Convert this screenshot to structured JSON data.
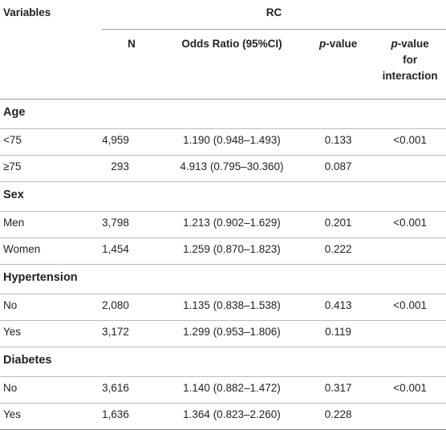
{
  "header": {
    "variables_label": "Variables",
    "group_label": "RC",
    "col_n": "N",
    "col_or": "Odds Ratio (95%CI)",
    "col_p_italic": "p",
    "col_p_rest": "-value",
    "col_pint_italic": "p",
    "col_pint_line1_rest": "-value",
    "col_pint_line2": "for",
    "col_pint_line3": "interaction"
  },
  "sections": [
    {
      "title": "Age",
      "rows": [
        {
          "label": "<75",
          "n": "4,959",
          "or": "1.190 (0.948–1.493)",
          "p": "0.133",
          "pint": "<0.001"
        },
        {
          "label": "≥75",
          "n": "293",
          "or": "4.913 (0.795–30.360)",
          "p": "0.087",
          "pint": ""
        }
      ]
    },
    {
      "title": "Sex",
      "rows": [
        {
          "label": "Men",
          "n": "3,798",
          "or": "1.213 (0.902–1.629)",
          "p": "0.201",
          "pint": "<0.001"
        },
        {
          "label": "Women",
          "n": "1,454",
          "or": "1.259 (0.870–1.823)",
          "p": "0.222",
          "pint": ""
        }
      ]
    },
    {
      "title": "Hypertension",
      "rows": [
        {
          "label": "No",
          "n": "2,080",
          "or": "1.135 (0.838–1.538)",
          "p": "0.413",
          "pint": "<0.001"
        },
        {
          "label": "Yes",
          "n": "3,172",
          "or": "1.299 (0.953–1.806)",
          "p": "0.119",
          "pint": ""
        }
      ]
    },
    {
      "title": "Diabetes",
      "rows": [
        {
          "label": "No",
          "n": "3,616",
          "or": "1.140 (0.882–1.472)",
          "p": "0.317",
          "pint": "<0.001"
        },
        {
          "label": "Yes",
          "n": "1,636",
          "or": "1.364 (0.823–2.260)",
          "p": "0.228",
          "pint": ""
        }
      ]
    }
  ]
}
